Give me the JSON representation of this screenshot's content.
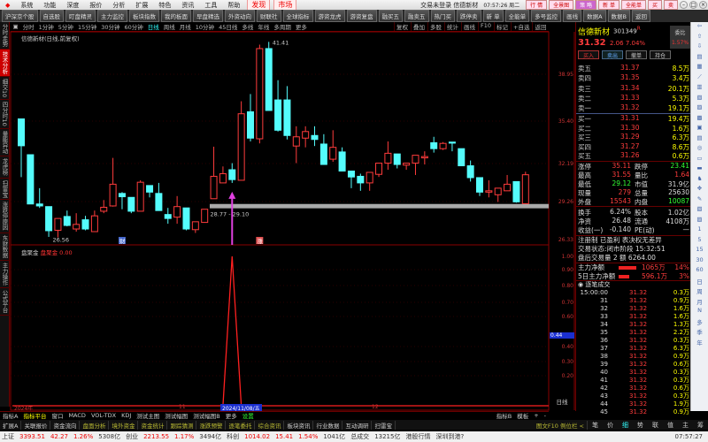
{
  "menu": {
    "items": [
      "系统",
      "功能",
      "深度",
      "报价",
      "分析",
      "扩展",
      "特色",
      "资讯",
      "工具",
      "帮助"
    ],
    "highlight": [
      "发现",
      "市场"
    ],
    "title": "交易未登录 信德新材",
    "time": "07:57:26 周二",
    "buttons": [
      "行 情",
      "全景图",
      "策 略",
      "新 单",
      "全能单",
      "买",
      "卖"
    ]
  },
  "toolbar": [
    "沪深京个股",
    "自选股",
    "盯盘精灵",
    "主力监控",
    "板块指数",
    "我的板面",
    "早盘精选",
    "外资动向",
    "财联社",
    "全球指标",
    "游资龙虎",
    "游资复盘",
    "融买五",
    "融卖五",
    "热门买",
    "跌停卖",
    "新 单",
    "全能单",
    "多号监控",
    "画线",
    "数据A",
    "数据B",
    "返回"
  ],
  "timeframes": {
    "items": [
      "分时",
      "1分钟",
      "5分钟",
      "15分钟",
      "30分钟",
      "60分钟",
      "日线",
      "周线",
      "月线",
      "10分钟",
      "45日线",
      "多线",
      "年线",
      "多周期",
      "更多"
    ],
    "active": "日线",
    "right": [
      "复权",
      "叠加",
      "多股",
      "统计",
      "画线",
      "F10",
      "标记",
      "+自选",
      "返回"
    ]
  },
  "leftside": {
    "items": [
      "分时走势",
      "技术分析",
      "细交10",
      "四分时10",
      "量能异动",
      "龙虎榜",
      "扫雷宝",
      "涨跌停原因",
      "东财数据",
      "主力操作",
      "公式平台"
    ],
    "active": "技术分析"
  },
  "chart": {
    "label": "信德新材(日线,前复权)",
    "support_label": "28.77 - 29.10",
    "high_label": "41.41",
    "low_label": "26.56",
    "marker_cai": "财",
    "marker_zhang": "涨",
    "price_axis": [
      "38.95",
      "35.40",
      "32.19",
      "29.26",
      "26.33"
    ],
    "ind_axis": [
      "1.00",
      "0.90",
      "0.80",
      "0.70",
      "0.60",
      "0.40",
      "0.30",
      "0.20"
    ],
    "ind_current": "0.44",
    "ind_name": "盘聚金",
    "ind_value_label": "盘聚金",
    "ind_value": "0.00",
    "x_labels": [
      "2024年",
      "11",
      "2024/11/08/五",
      "12"
    ],
    "axis_mode": "日线"
  },
  "chart_data": {
    "type": "candlestick",
    "up_color": "#ff3c3c",
    "down_color": "#54fcfc",
    "ohlc": [
      [
        35.56,
        33.52,
        35.56,
        31.14
      ],
      [
        32.84,
        29.1,
        32.84,
        29.1
      ],
      [
        29.1,
        28.95,
        30.3,
        28.8
      ],
      [
        28.9,
        27.07,
        28.9,
        26.6
      ],
      [
        27.1,
        28.0,
        28.0,
        26.56
      ],
      [
        28.15,
        27.47,
        28.6,
        27.4
      ],
      [
        27.2,
        27.55,
        28.4,
        27.0
      ],
      [
        27.9,
        27.2,
        28.2,
        27.1
      ],
      [
        27.0,
        28.2,
        28.6,
        27.0
      ],
      [
        28.55,
        28.85,
        29.4,
        28.4
      ],
      [
        28.95,
        30.6,
        32.6,
        28.9
      ],
      [
        29.9,
        29.65,
        30.0,
        28.7
      ],
      [
        29.6,
        28.55,
        29.6,
        28.4
      ],
      [
        28.55,
        30.75,
        30.9,
        28.55
      ],
      [
        30.5,
        30.0,
        30.5,
        29.6
      ],
      [
        29.9,
        28.6,
        30.7,
        28.6
      ],
      [
        28.3,
        28.0,
        28.8,
        27.6
      ],
      [
        28.1,
        28.9,
        29.7,
        27.6
      ],
      [
        28.8,
        27.2,
        28.8,
        27.1
      ],
      [
        27.15,
        27.75,
        27.75,
        26.9
      ],
      [
        27.7,
        28.7,
        28.7,
        27.7
      ],
      [
        29.5,
        31.2,
        33.45,
        29.5
      ],
      [
        30.7,
        31.4,
        31.95,
        30.7
      ],
      [
        31.7,
        30.95,
        32.2,
        30.7
      ],
      [
        30.9,
        35.95,
        36.9,
        30.9
      ],
      [
        36.1,
        34.1,
        37.45,
        33.85
      ],
      [
        34.05,
        40.9,
        41.2,
        33.7
      ],
      [
        40.9,
        36.2,
        41.41,
        36.2
      ],
      [
        37.0,
        34.7,
        38.5,
        34.6
      ],
      [
        37.0,
        34.3,
        38.05,
        34.0
      ],
      [
        33.5,
        34.2,
        35.0,
        32.2
      ],
      [
        34.1,
        34.6,
        35.0,
        33.4
      ],
      [
        34.3,
        34.0,
        35.0,
        33.5
      ],
      [
        33.65,
        32.1,
        34.4,
        32.1
      ],
      [
        32.5,
        33.4,
        34.7,
        32.3
      ],
      [
        33.05,
        31.6,
        33.4,
        31.6
      ],
      [
        31.6,
        31.15,
        31.6,
        30.3
      ],
      [
        31.2,
        30.7,
        31.4,
        30.1
      ],
      [
        30.7,
        31.5,
        31.5,
        30.1
      ],
      [
        31.35,
        32.2,
        32.2,
        31.15
      ],
      [
        32.2,
        32.95,
        33.85,
        31.7
      ],
      [
        32.9,
        32.1,
        32.9,
        31.8
      ],
      [
        32.05,
        32.2,
        32.2,
        31.7
      ],
      [
        32.2,
        32.8,
        32.8,
        31.3
      ],
      [
        32.6,
        32.7,
        33.1,
        32.1
      ],
      [
        33.75,
        33.3,
        34.2,
        33.0
      ],
      [
        33.3,
        33.7,
        33.8,
        33.2
      ],
      [
        33.8,
        33.75,
        33.8,
        33.1
      ],
      [
        33.3,
        32.0,
        33.3,
        32.0
      ],
      [
        32.0,
        31.1,
        32.4,
        30.8
      ],
      [
        31.1,
        30.0,
        31.1,
        29.7
      ],
      [
        30.0,
        30.1,
        30.9,
        29.6
      ],
      [
        29.8,
        30.3,
        30.3,
        29.25
      ],
      [
        30.1,
        30.6,
        31.3,
        30.1
      ],
      [
        30.8,
        29.26,
        30.8,
        29.2
      ],
      [
        29.12,
        31.32,
        31.55,
        29.12
      ]
    ],
    "support_range": [
      28.77,
      29.1
    ],
    "signal_index": 23,
    "indicator_values": [
      0,
      0,
      0,
      0,
      0,
      0,
      0,
      0,
      0,
      0,
      0,
      0,
      0,
      0,
      0,
      0,
      0,
      0,
      0,
      0,
      0,
      0,
      0,
      1,
      0,
      0,
      0,
      0,
      0,
      0,
      0,
      0,
      0,
      0,
      0,
      0,
      0,
      0,
      0,
      0,
      0,
      0,
      0,
      0,
      0,
      0,
      0,
      0,
      0,
      0,
      0,
      0,
      0,
      0,
      0,
      0
    ],
    "price_ylim": [
      26.33,
      38.95
    ],
    "indicator_ylim": [
      0,
      1
    ]
  },
  "quote": {
    "name": "信德新材",
    "code": "301349",
    "badge": "R",
    "price": "31.32",
    "change": "2.06",
    "pct": "7.04%",
    "wb_label": "委比",
    "wb_value": "1.57%",
    "buttons": [
      "买入",
      "卖出",
      "撤单",
      "持仓"
    ],
    "asks": [
      [
        "卖五",
        "31.37",
        "8.5万"
      ],
      [
        "卖四",
        "31.35",
        "3.4万"
      ],
      [
        "卖三",
        "31.34",
        "20.1万"
      ],
      [
        "卖二",
        "31.33",
        "5.3万"
      ],
      [
        "卖一",
        "31.32",
        "19.1万"
      ]
    ],
    "bids": [
      [
        "买一",
        "31.31",
        "19.4万"
      ],
      [
        "买二",
        "31.30",
        "1.6万"
      ],
      [
        "买三",
        "31.29",
        "6.3万"
      ],
      [
        "买四",
        "31.27",
        "8.6万"
      ],
      [
        "买五",
        "31.26",
        "0.6万"
      ]
    ],
    "stats": [
      [
        "涨停",
        "35.11",
        "跌停",
        "23.41"
      ],
      [
        "最高",
        "31.55",
        "量比",
        "1.64"
      ],
      [
        "最低",
        "29.12",
        "市值",
        "31.9亿"
      ],
      [
        "现量",
        "279",
        "总量",
        "25630"
      ],
      [
        "外盘",
        "15543",
        "内盘",
        "10087"
      ],
      [
        "换手",
        "6.24%",
        "股本",
        "1.02亿"
      ],
      [
        "净资",
        "26.48",
        "流通",
        "4108万"
      ],
      [
        "收益(一)",
        "-0.140",
        "PE(动)",
        "—"
      ]
    ],
    "info": [
      "注册制 已盈利 表决权无差异",
      "交易状态:闭市阶段 15:32:51",
      "盘后交易量 2 额 6264.00"
    ],
    "flows": [
      [
        "主力净额",
        "1065万",
        "14%"
      ],
      [
        "5日主力净额",
        "596.1万",
        "3%"
      ]
    ],
    "ticks_title": "逐笔成交",
    "ticks": [
      [
        "15:00:00",
        "31.32",
        "0.3万"
      ],
      [
        "31",
        "31.32",
        "0.9万"
      ],
      [
        "32",
        "31.32",
        "1.6万"
      ],
      [
        "33",
        "31.32",
        "1.6万"
      ],
      [
        "34",
        "31.32",
        "1.3万"
      ],
      [
        "35",
        "31.32",
        "2.2万"
      ],
      [
        "36",
        "31.32",
        "0.3万"
      ],
      [
        "37",
        "31.32",
        "6.3万"
      ],
      [
        "38",
        "31.32",
        "0.9万"
      ],
      [
        "39",
        "31.32",
        "0.6万"
      ],
      [
        "40",
        "31.32",
        "0.3万"
      ],
      [
        "41",
        "31.32",
        "0.3万"
      ],
      [
        "42",
        "31.32",
        "0.6万"
      ],
      [
        "43",
        "31.32",
        "0.3万"
      ],
      [
        "44",
        "31.32",
        "1.9万"
      ],
      [
        "45",
        "31.32",
        "0.9万"
      ]
    ]
  },
  "rtools": [
    "⇦",
    "⇧",
    "⇩",
    "▤",
    "▦",
    "⟋",
    "▥",
    "▧",
    "▨",
    "▩",
    "▣",
    "▤",
    "◎",
    "▭",
    "▬",
    "♞",
    "✥",
    "✎",
    "▧",
    "▨",
    "1",
    "5",
    "15",
    "30",
    "60",
    "日",
    "周",
    "月",
    "N",
    "多",
    "季",
    "年"
  ],
  "tabs1": {
    "items": [
      "指标A",
      "指标平台",
      "窗口",
      "MACD",
      "VOL-TDX",
      "KDJ",
      "测试主图",
      "测试幅图",
      "测试幅图B",
      "更多",
      "设置"
    ],
    "right": [
      "指标B",
      "模板",
      "+",
      "-"
    ]
  },
  "tabs2": {
    "items": [
      "扩展A",
      "关联报价",
      "资金流向",
      "盘面分析",
      "境外资金",
      "资金统计",
      "跟踪猜测",
      "涨跌预警",
      "逐笔委托",
      "综合资讯",
      "板块资讯",
      "行业数据",
      "互动调研",
      "扫雷宝"
    ],
    "right_label": "图文F10 例位栏 <",
    "right": [
      "笔",
      "价",
      "细",
      "势",
      "联",
      "值",
      "主",
      "筹"
    ]
  },
  "status": {
    "items": [
      "上证",
      "3393.51",
      "42.27",
      "1.26%",
      "5308亿",
      "创业",
      "2213.55",
      "1.17%",
      "3494亿",
      "科创",
      "1014.02",
      "15.41",
      "1.54%",
      "1041亿",
      "总成交",
      "13215亿",
      "港股行情",
      "深圳到港?"
    ],
    "time": "07:57:27"
  }
}
